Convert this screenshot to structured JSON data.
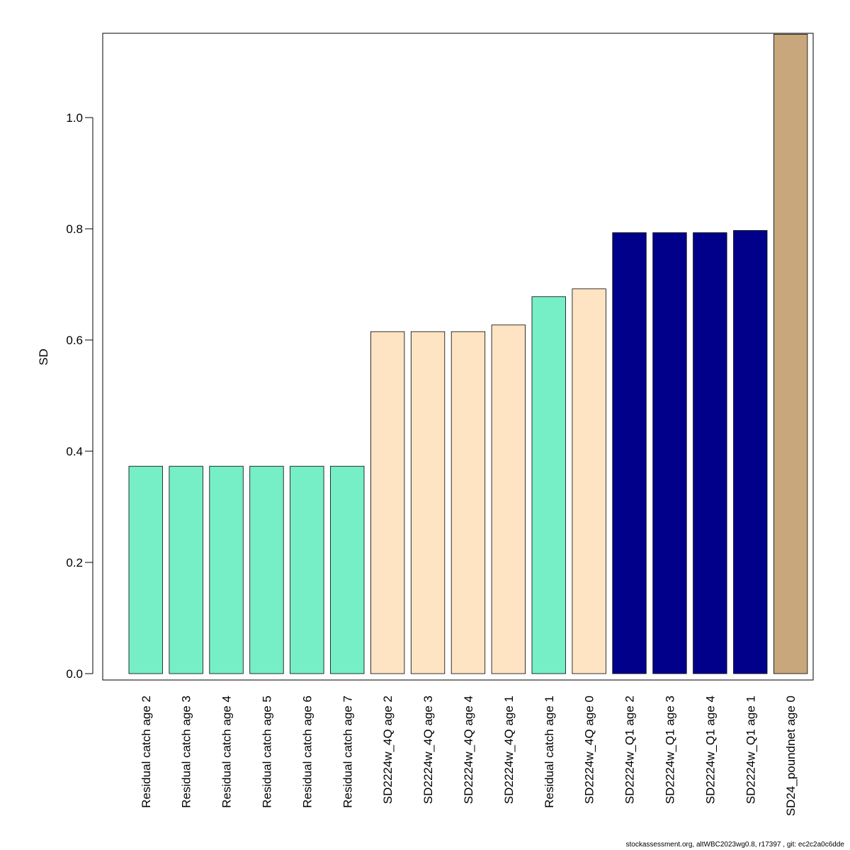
{
  "chart_data": {
    "type": "bar",
    "title": "",
    "xlabel": "",
    "ylabel": "SD",
    "ylim": [
      0,
      1.15
    ],
    "yticks": [
      0.0,
      0.2,
      0.4,
      0.6,
      0.8,
      1.0
    ],
    "ytick_labels": [
      "0.0",
      "0.2",
      "0.4",
      "0.6",
      "0.8",
      "1.0"
    ],
    "grid": false,
    "legend": "none",
    "categories": [
      "Residual catch age 2",
      "Residual catch age 3",
      "Residual catch age 4",
      "Residual catch age 5",
      "Residual catch age 6",
      "Residual catch age 7",
      "SD2224w_4Q age 2",
      "SD2224w_4Q age 3",
      "SD2224w_4Q age 4",
      "SD2224w_4Q age 1",
      "Residual catch age 1",
      "SD2224w_4Q age 0",
      "SD2224w_Q1 age 2",
      "SD2224w_Q1 age 3",
      "SD2224w_Q1 age 4",
      "SD2224w_Q1 age 1",
      "SD24_poundnet age 0"
    ],
    "values": [
      0.373,
      0.373,
      0.373,
      0.373,
      0.373,
      0.373,
      0.615,
      0.615,
      0.615,
      0.627,
      0.678,
      0.692,
      0.793,
      0.793,
      0.793,
      0.797,
      1.15
    ],
    "colors": [
      "#76EEC6",
      "#76EEC6",
      "#76EEC6",
      "#76EEC6",
      "#76EEC6",
      "#76EEC6",
      "#FFE4C4",
      "#FFE4C4",
      "#FFE4C4",
      "#FFE4C4",
      "#76EEC6",
      "#FFE4C4",
      "#00008B",
      "#00008B",
      "#00008B",
      "#00008B",
      "#C9A77C"
    ]
  },
  "footer": "stockassessment.org, altWBC2023wg0.8, r17397 , git: ec2c2a0c6dde"
}
